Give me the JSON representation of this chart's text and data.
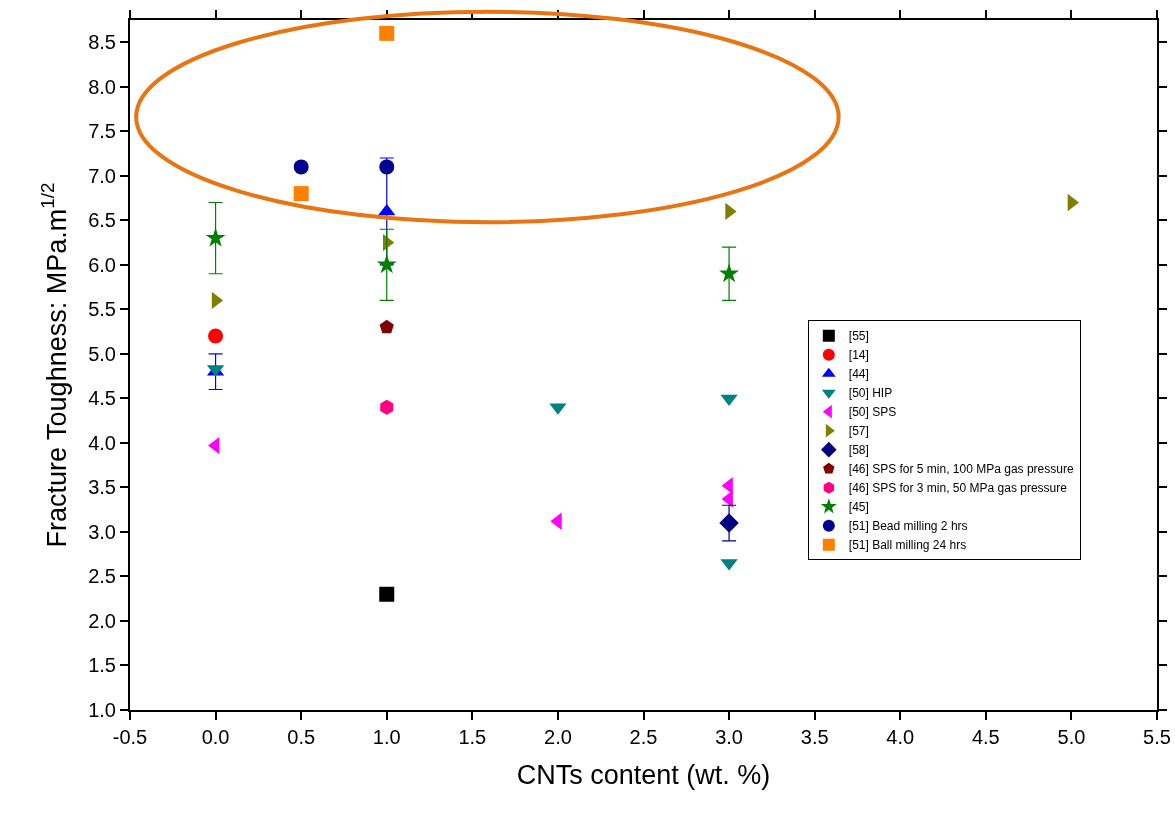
{
  "chart_data": {
    "type": "scatter",
    "xlabel": "CNTs content (wt. %)",
    "ylabel": "Fracture Toughness: MPa.m$^{1/2}$",
    "xlim": [
      -0.5,
      5.5
    ],
    "xticks": [
      -0.5,
      {
        "value": 0,
        "label": "0.0"
      },
      0.5,
      {
        "value": 1,
        "label": "1.0"
      },
      1.5,
      {
        "value": 2,
        "label": "2.0"
      },
      2.5,
      {
        "value": 3,
        "label": "3.0"
      },
      3.5,
      {
        "value": 4,
        "label": "4.0"
      },
      4.5,
      {
        "value": 5,
        "label": "5.0"
      },
      5.5
    ],
    "ylim": [
      1.0,
      8.75
    ],
    "yticks": [
      {
        "value": 1,
        "label": "1.0"
      },
      1.5,
      {
        "value": 2,
        "label": "2.0"
      },
      2.5,
      {
        "value": 3,
        "label": "3.0"
      },
      3.5,
      {
        "value": 4,
        "label": "4.0"
      },
      4.5,
      {
        "value": 5,
        "label": "5.0"
      },
      5.5,
      {
        "value": 6,
        "label": "6.0"
      },
      6.5,
      {
        "value": 7,
        "label": "7.0"
      },
      7.5,
      {
        "value": 8,
        "label": "8.0"
      },
      8.5
    ],
    "grid": false,
    "legend": "right",
    "series": [
      {
        "name": "[55]",
        "color": "#000000",
        "marker": "square",
        "x": [
          1
        ],
        "values": [
          2.3
        ]
      },
      {
        "name": "[14]",
        "color": "#ff0000",
        "marker": "circle",
        "x": [
          0
        ],
        "values": [
          5.2
        ]
      },
      {
        "name": "[44]",
        "color": "#0000ff",
        "marker": "triangle",
        "x": [
          0,
          1
        ],
        "values": [
          4.8,
          6.6
        ],
        "errors": [
          0.2,
          [
            6.0,
            7.2
          ]
        ]
      },
      {
        "name": "[50] HIP",
        "color": "#008080",
        "marker": "triangle-down",
        "x": [
          0,
          2,
          3,
          3
        ],
        "values": [
          4.83,
          4.4,
          4.5,
          2.65
        ]
      },
      {
        "name": "[50] SPS",
        "color": "#ff00ff",
        "marker": "triangle-left",
        "x": [
          0,
          2,
          3,
          3
        ],
        "values": [
          3.97,
          3.12,
          3.52,
          3.37
        ]
      },
      {
        "name": "[57]",
        "color": "#808000",
        "marker": "triangle-right",
        "x": [
          0,
          1,
          3,
          5
        ],
        "values": [
          5.6,
          6.25,
          6.6,
          6.7
        ]
      },
      {
        "name": "[58]",
        "color": "#000080",
        "marker": "diamond",
        "x": [
          3
        ],
        "values": [
          3.1
        ],
        "errors": [
          0.2
        ]
      },
      {
        "name": "[46] SPS for 5 min, 100 MPa gas pressure",
        "color": "#800000",
        "x": [
          1
        ],
        "values": [
          5.3
        ]
      },
      {
        "name": "[46] SPS for 3 min, 50 MPa gas pressure",
        "color": "#ff0080",
        "x": [
          1
        ],
        "values": [
          4.4
        ]
      },
      {
        "name": "[45]",
        "color": "#008000",
        "marker": "star",
        "x": [
          0,
          1,
          3
        ],
        "values": [
          6.3,
          6.0,
          5.9
        ],
        "errors": [
          0.4,
          0.4,
          0.3
        ]
      },
      {
        "name": "[51] Bead milling 2 hrs",
        "color": "#000090",
        "marker": "circle",
        "x": [
          0.5,
          1
        ],
        "values": [
          7.1,
          7.1
        ]
      },
      {
        "name": "[51] Ball milling 24 hrs",
        "color": "#ff8000",
        "marker": "square",
        "x": [
          0.5,
          1
        ],
        "values": [
          6.8,
          8.6
        ]
      }
    ]
  }
}
